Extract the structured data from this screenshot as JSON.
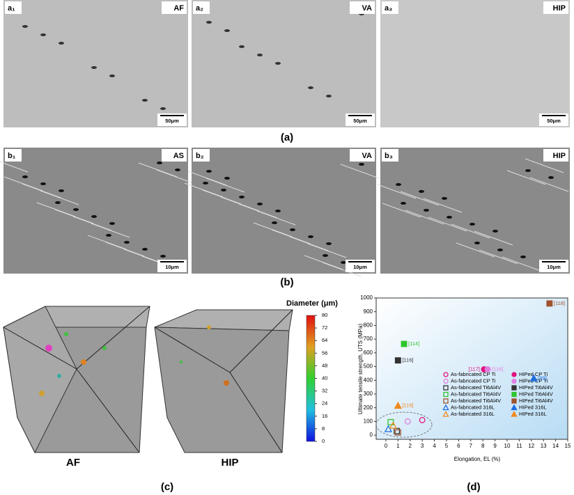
{
  "panels": {
    "a": {
      "caption": "(a)",
      "images": [
        {
          "label": "a₁",
          "tag": "AF",
          "scale": "50μm"
        },
        {
          "label": "a₂",
          "tag": "VA",
          "scale": "50μm"
        },
        {
          "label": "a₃",
          "tag": "HIP",
          "scale": "50μm"
        }
      ]
    },
    "b": {
      "caption": "(b)",
      "images": [
        {
          "label": "b₁",
          "tag": "AS",
          "scale": "10μm"
        },
        {
          "label": "b₂",
          "tag": "VA",
          "scale": "10μm"
        },
        {
          "label": "b₃",
          "tag": "HIP",
          "scale": "10μm"
        }
      ]
    },
    "c": {
      "caption": "(c)",
      "cubes": [
        "AF",
        "HIP"
      ],
      "colorbar": {
        "title": "Diameter (μm)",
        "lim": [
          0,
          80
        ],
        "ticks": [
          0,
          8,
          16,
          24,
          32,
          40,
          48,
          56,
          64,
          72,
          80
        ]
      }
    }
  },
  "chart_data": {
    "type": "scatter",
    "caption": "(d)",
    "xlabel": "Elongation, EL (%)",
    "ylabel": "Ultimate tensile strength, UTS (MPa)",
    "xlim": [
      -0.8,
      15
    ],
    "ylim": [
      -30,
      1000
    ],
    "xticks": [
      0,
      1,
      2,
      3,
      4,
      5,
      6,
      7,
      8,
      9,
      10,
      11,
      12,
      13,
      14,
      15
    ],
    "yticks": [
      0,
      100,
      200,
      300,
      400,
      500,
      600,
      700,
      800,
      900,
      1000
    ],
    "series": [
      {
        "name": "As-fabricated CP Ti",
        "color": "#e0157f",
        "marker": "circle",
        "filled": false,
        "x": [
          3
        ],
        "values": [
          110
        ]
      },
      {
        "name": "As-fabricated CP Ti",
        "color": "#e07fe0",
        "marker": "circle",
        "filled": false,
        "x": [
          1.8
        ],
        "values": [
          100
        ]
      },
      {
        "name": "As-fabricated Ti6Al4V",
        "color": "#333333",
        "marker": "square",
        "filled": false,
        "x": [
          0.9
        ],
        "values": [
          30
        ]
      },
      {
        "name": "As-fabricated Ti6Al4V",
        "color": "#2ec42e",
        "marker": "square",
        "filled": false,
        "x": [
          0.4
        ],
        "values": [
          95
        ]
      },
      {
        "name": "As-fabricated Ti6Al4V",
        "color": "#a0522d",
        "marker": "square",
        "filled": false,
        "x": [
          1
        ],
        "values": [
          20
        ]
      },
      {
        "name": "As-fabricated 316L",
        "color": "#1f6fe0",
        "marker": "triangle",
        "filled": false,
        "x": [
          0.2
        ],
        "values": [
          45
        ]
      },
      {
        "name": "As-fabricated 316L",
        "color": "#f08a1e",
        "marker": "triangle",
        "filled": false,
        "x": [
          0.6
        ],
        "values": [
          70
        ]
      },
      {
        "name": "HIPed CP Ti",
        "color": "#e0157f",
        "marker": "circle",
        "filled": true,
        "x": [
          8.1
        ],
        "values": [
          480
        ],
        "label": "[117]"
      },
      {
        "name": "HIPed CP Ti",
        "color": "#e07fe0",
        "marker": "circle",
        "filled": true,
        "x": [
          8.4
        ],
        "values": [
          480
        ],
        "label": "[116]"
      },
      {
        "name": "HIPed Ti6Al4V",
        "color": "#333333",
        "marker": "square",
        "filled": true,
        "x": [
          1
        ],
        "values": [
          545
        ],
        "label": "[116]"
      },
      {
        "name": "HIPed Ti6Al4V",
        "color": "#2ec42e",
        "marker": "square",
        "filled": true,
        "x": [
          1.5
        ],
        "values": [
          665
        ],
        "label": "[114]"
      },
      {
        "name": "HIPed Ti6Al4V",
        "color": "#a0522d",
        "marker": "square",
        "filled": true,
        "x": [
          13.5
        ],
        "values": [
          960
        ],
        "label": "[118]"
      },
      {
        "name": "HIPed 316L",
        "color": "#1f6fe0",
        "marker": "triangle",
        "filled": true,
        "x": [
          12.2
        ],
        "values": [
          415
        ],
        "label": "[99]"
      },
      {
        "name": "HIPed 316L",
        "color": "#f08a1e",
        "marker": "triangle",
        "filled": true,
        "x": [
          1
        ],
        "values": [
          215
        ],
        "label": "[116]"
      }
    ]
  }
}
